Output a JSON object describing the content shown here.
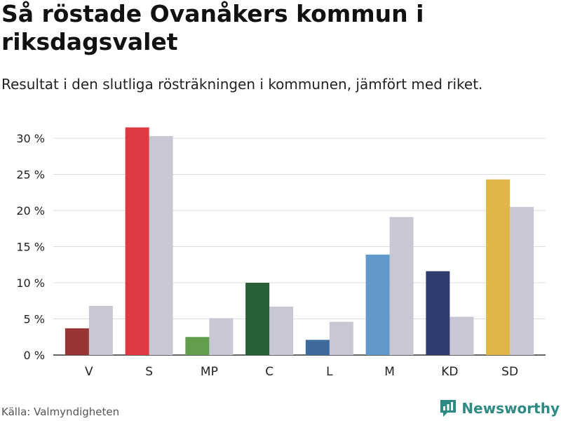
{
  "title": "Så röstade Ovanåkers kommun i riksdagsvalet",
  "subtitle": "Resultat i den slutliga rösträkningen i kommunen, jämfört med riket.",
  "source": "Källa: Valmyndigheten",
  "brand": "Newsworthy",
  "colors": {
    "comparison": "#c8c8d4",
    "brand": "#2e8b84",
    "grid": "#dddddd"
  },
  "chart_data": {
    "type": "bar",
    "categories": [
      "V",
      "S",
      "MP",
      "C",
      "L",
      "M",
      "KD",
      "SD"
    ],
    "series": [
      {
        "name": "Ovanåkers kommun",
        "values": [
          3.7,
          31.5,
          2.5,
          10.0,
          2.1,
          13.9,
          11.6,
          24.3
        ],
        "colors": [
          "#973634",
          "#dd3a41",
          "#629e4e",
          "#275f36",
          "#3f6b9c",
          "#6299cd",
          "#303c6e",
          "#dfb647"
        ]
      },
      {
        "name": "Riket",
        "values": [
          6.8,
          30.3,
          5.1,
          6.7,
          4.6,
          19.1,
          5.3,
          20.5
        ],
        "color": "#c8c8d4"
      }
    ],
    "yticks": [
      "0 %",
      "5 %",
      "10 %",
      "15 %",
      "20 %",
      "25 %",
      "30 %"
    ],
    "ylim": [
      0,
      30
    ]
  }
}
